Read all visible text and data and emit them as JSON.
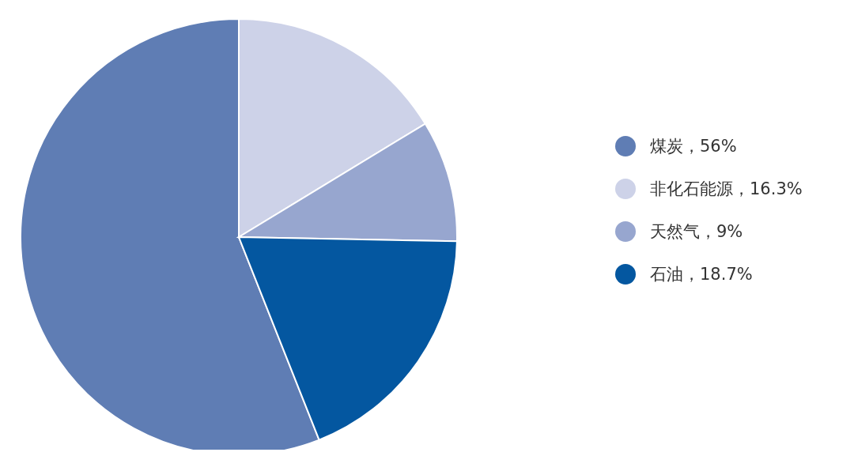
{
  "chart_data": {
    "type": "pie",
    "categories": [
      "煤炭，56%",
      "非化石能源，16.3%",
      "天然气，9%",
      "石油，18.7%"
    ],
    "values": [
      56,
      16.3,
      9,
      18.7
    ],
    "colors": [
      "#5f7db4",
      "#cdd2e8",
      "#97a6cf",
      "#0457a0"
    ],
    "legend": "right"
  }
}
